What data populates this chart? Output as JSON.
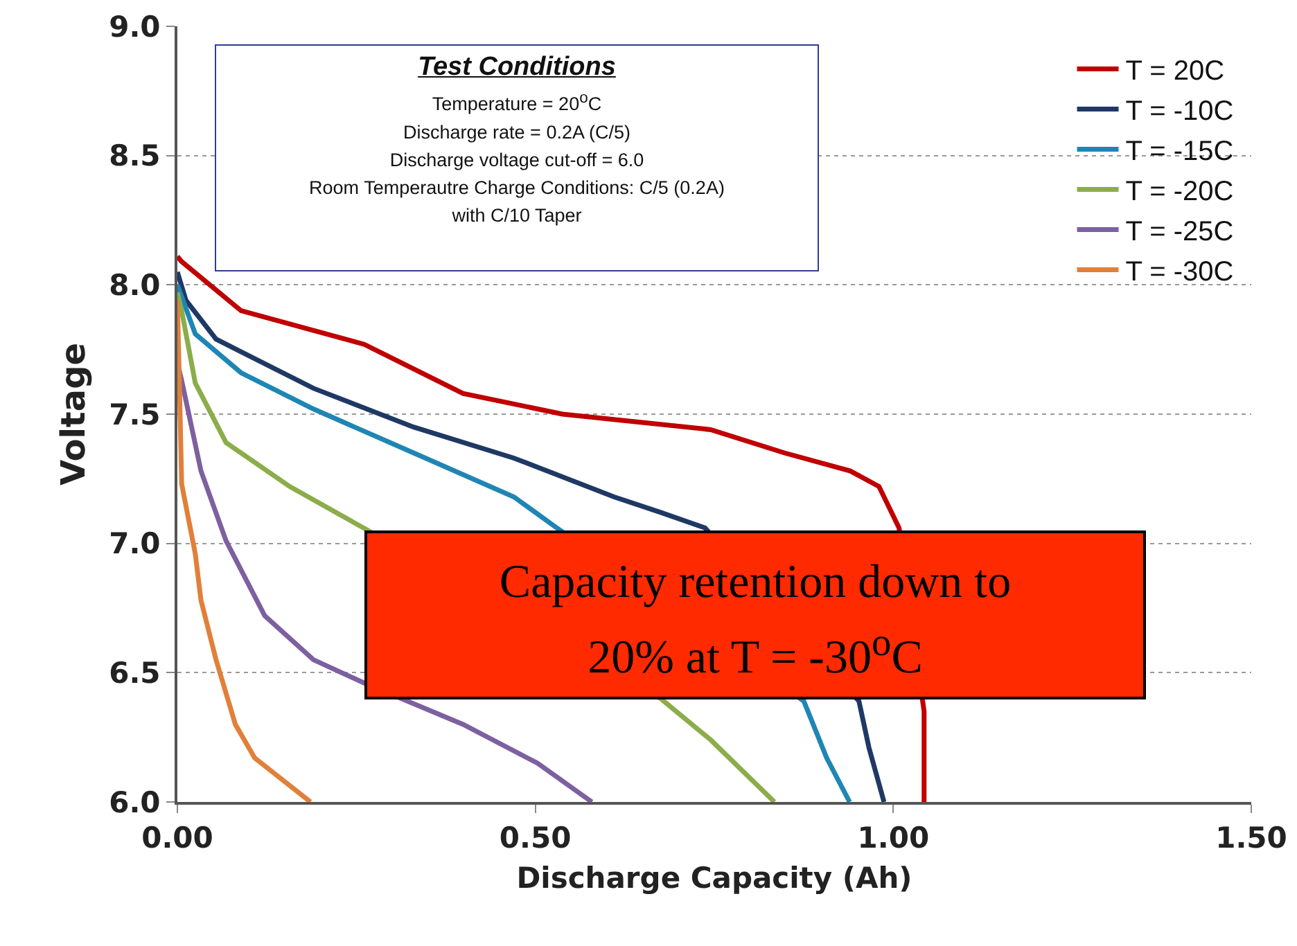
{
  "chart_data": {
    "type": "line",
    "xlabel": "Discharge Capacity (Ah)",
    "ylabel": "Voltage",
    "xlim": [
      0,
      1.5
    ],
    "ylim": [
      6,
      9
    ],
    "xticks": [
      {
        "value": 0,
        "label": "0.00"
      },
      {
        "value": 0.5,
        "label": "0.50"
      },
      {
        "value": 1,
        "label": "1.00"
      },
      {
        "value": 1.5,
        "label": "1.50"
      }
    ],
    "yticks": [
      {
        "value": 6,
        "label": "6.0"
      },
      {
        "value": 6.5,
        "label": "6.5"
      },
      {
        "value": 7,
        "label": "7.0"
      },
      {
        "value": 7.5,
        "label": "7.5"
      },
      {
        "value": 8,
        "label": "8.0"
      },
      {
        "value": 8.5,
        "label": "8.5"
      },
      {
        "value": 9,
        "label": "9.0"
      }
    ],
    "grid": "y",
    "legend": "top right",
    "line_style": "solid",
    "series": [
      {
        "name": "T = 20C",
        "color": "#c00000",
        "x": [
          0,
          0.006,
          0.089,
          0.261,
          0.399,
          0.538,
          0.745,
          0.848,
          0.94,
          0.98,
          1.008,
          1.043,
          1.043
        ],
        "values": [
          8.11,
          8.09,
          7.9,
          7.77,
          7.58,
          7.5,
          7.44,
          7.35,
          7.28,
          7.22,
          7.06,
          6.35,
          6.0
        ]
      },
      {
        "name": "T = -10C",
        "color": "#1f3864",
        "x": [
          0,
          0.012,
          0.054,
          0.19,
          0.33,
          0.47,
          0.61,
          0.675,
          0.737,
          0.952,
          0.966,
          0.987
        ],
        "values": [
          8.05,
          7.94,
          7.79,
          7.6,
          7.45,
          7.33,
          7.18,
          7.12,
          7.06,
          6.39,
          6.21,
          6.0
        ]
      },
      {
        "name": "T = -15C",
        "color": "#1f86b4",
        "x": [
          0,
          0.025,
          0.089,
          0.19,
          0.33,
          0.47,
          0.53,
          0.875,
          0.907,
          0.939
        ],
        "values": [
          8.0,
          7.81,
          7.66,
          7.52,
          7.35,
          7.18,
          7.06,
          6.39,
          6.17,
          6.0
        ]
      },
      {
        "name": "T = -20C",
        "color": "#8bad4a",
        "x": [
          0,
          0.006,
          0.025,
          0.068,
          0.157,
          0.26,
          0.675,
          0.745,
          0.834
        ],
        "values": [
          7.97,
          7.9,
          7.62,
          7.39,
          7.22,
          7.06,
          6.4,
          6.24,
          6.0
        ]
      },
      {
        "name": "T = -25C",
        "color": "#7d60a0",
        "x": [
          0,
          0.006,
          0.033,
          0.068,
          0.122,
          0.19,
          0.261,
          0.399,
          0.503,
          0.579
        ],
        "values": [
          7.7,
          7.63,
          7.28,
          7.01,
          6.72,
          6.55,
          6.46,
          6.3,
          6.15,
          6.0
        ]
      },
      {
        "name": "T = -30C",
        "color": "#e0803a",
        "x": [
          0,
          0.003,
          0.006,
          0.025,
          0.033,
          0.054,
          0.081,
          0.108,
          0.186
        ],
        "values": [
          7.94,
          7.6,
          7.23,
          6.96,
          6.78,
          6.55,
          6.3,
          6.17,
          6.0
        ]
      }
    ],
    "annotations": [
      "Test Conditions\nTemperature = 20$^{o}$C\nDischarge rate = 0.2A (C/5)\nDischarge voltage cut-off = 6.0\nRoom Temperautre Charge Conditions:  C/5 (0.2A)\nwith C/10 Taper",
      "Capacity retention down to\n20% at T = -30$^{o}$C"
    ]
  }
}
